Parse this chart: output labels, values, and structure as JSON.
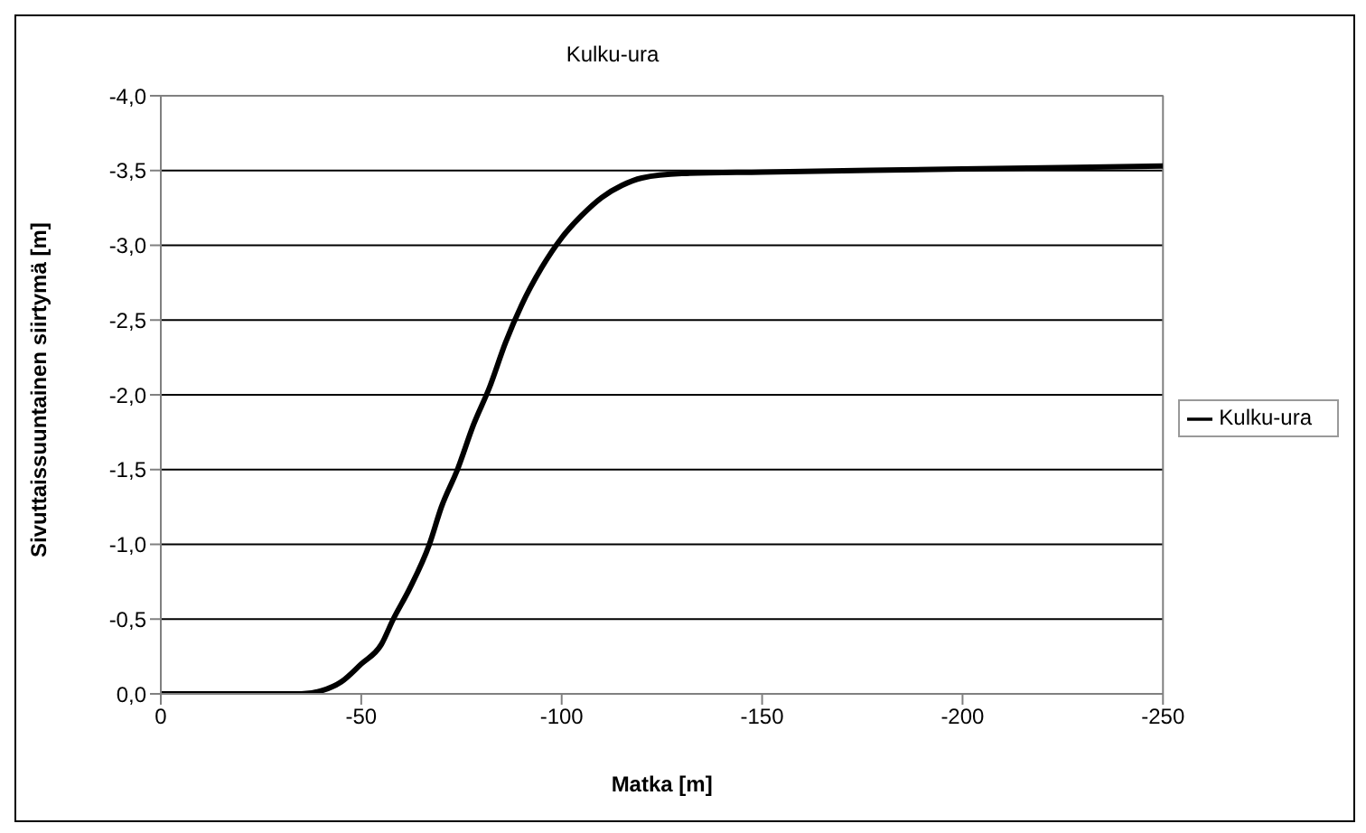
{
  "chart_data": {
    "type": "line",
    "title": "Kulku-ura",
    "xlabel": "Matka [m]",
    "ylabel": "Sivuttaissuuntainen siirtymä [m]",
    "x": [
      0,
      -35,
      -40,
      -45,
      -50,
      -55,
      -58,
      -62,
      -67,
      -70,
      -74,
      -78,
      -82,
      -86,
      -90,
      -95,
      -100,
      -105,
      -110,
      -115,
      -120,
      -130,
      -150,
      -200,
      -250
    ],
    "series": [
      {
        "name": "Kulku-ura",
        "color": "#000000",
        "values": [
          0,
          0,
          -0.02,
          -0.08,
          -0.2,
          -0.33,
          -0.5,
          -0.7,
          -1.0,
          -1.25,
          -1.5,
          -1.8,
          -2.05,
          -2.35,
          -2.6,
          -2.85,
          -3.05,
          -3.2,
          -3.32,
          -3.4,
          -3.45,
          -3.48,
          -3.49,
          -3.51,
          -3.53
        ]
      }
    ],
    "xlim": [
      0,
      -250
    ],
    "xticks": [
      0,
      -50,
      -100,
      -150,
      -200,
      -250
    ],
    "ylim": [
      0,
      -4
    ],
    "yticks": [
      {
        "value": 0,
        "label": "0,0"
      },
      {
        "value": -0.5,
        "label": "-0,5"
      },
      {
        "value": -1,
        "label": "-1,0"
      },
      {
        "value": -1.5,
        "label": "-1,5"
      },
      {
        "value": -2,
        "label": "-2,0"
      },
      {
        "value": -2.5,
        "label": "-2,5"
      },
      {
        "value": -3,
        "label": "-3,0"
      },
      {
        "value": -3.5,
        "label": "-3,5"
      },
      {
        "value": -4,
        "label": "-4,0"
      }
    ],
    "grid": "y",
    "legend": "right",
    "marker": "none",
    "line_style": "solid"
  }
}
